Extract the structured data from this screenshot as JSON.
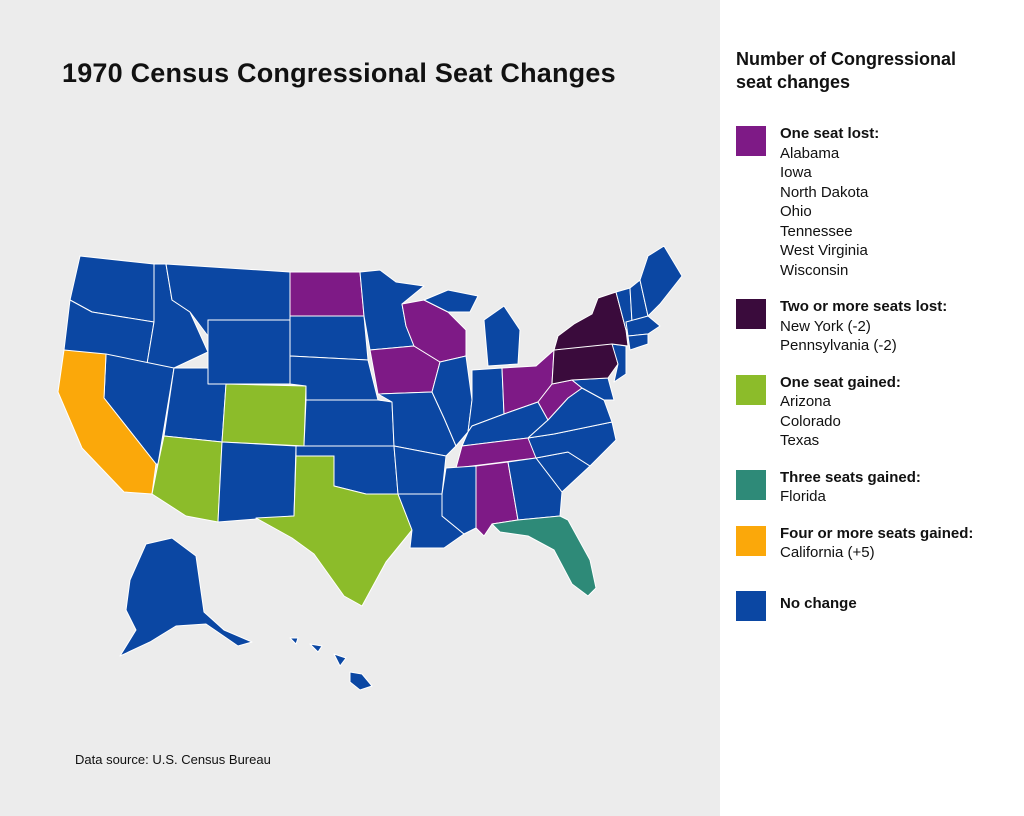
{
  "title": "1970 Census Congressional Seat Changes",
  "source": "Data source: U.S. Census Bureau",
  "legend": {
    "heading_line1": "Number of Congressional",
    "heading_line2": "seat changes",
    "groups": [
      {
        "label": "One seat lost:",
        "color": "#7e1a86",
        "states": [
          "Alabama",
          "Iowa",
          "North Dakota",
          "Ohio",
          "Tennessee",
          "West Virginia",
          "Wisconsin"
        ]
      },
      {
        "label": "Two or more seats lost:",
        "color": "#3a0b3c",
        "states": [
          "New York (-2)",
          "Pennsylvania (-2)"
        ]
      },
      {
        "label": "One seat gained:",
        "color": "#8cbc2a",
        "states": [
          "Arizona",
          "Colorado",
          "Texas"
        ]
      },
      {
        "label": "Three seats gained:",
        "color": "#2e8a78",
        "states": [
          "Florida"
        ]
      },
      {
        "label": "Four or more seats gained:",
        "color": "#fba80a",
        "states": [
          "California (+5)"
        ]
      },
      {
        "label": "No change",
        "color": "#0b47a3",
        "states": []
      }
    ]
  },
  "colors": {
    "no_change": "#0b47a3",
    "one_lost": "#7e1a86",
    "two_lost": "#3a0b3c",
    "one_gained": "#8cbc2a",
    "three_gained": "#2e8a78",
    "four_gained": "#fba80a",
    "panel_bg": "#ececec"
  }
}
